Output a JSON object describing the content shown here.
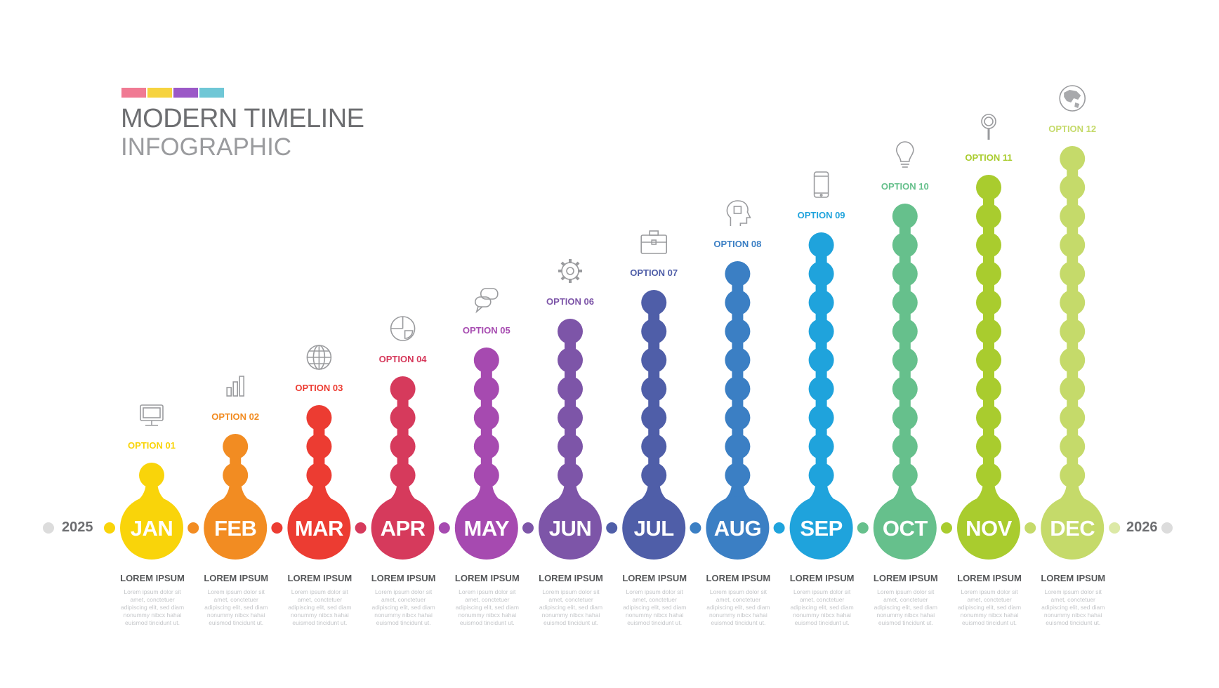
{
  "header": {
    "title_line1": "MODERN TIMELINE",
    "title_line2": "INFOGRAPHIC",
    "swatches": [
      "#f07a93",
      "#f6d33f",
      "#9b59c7",
      "#6fc7d6"
    ]
  },
  "years": {
    "start": "2025",
    "end": "2026"
  },
  "months": [
    {
      "label": "JAN",
      "option": "OPTION 01",
      "icon": "computer-icon",
      "color": "#f9d40a",
      "head": "LOREM IPSUM",
      "body": "Lorem ipsum dolor sit amet, conctetuer adipiscing elit, sed diam nonummy nibcx hahai euismod tincidunt ut."
    },
    {
      "label": "FEB",
      "option": "OPTION 02",
      "icon": "bar-chart-icon",
      "color": "#f28c22",
      "head": "LOREM IPSUM",
      "body": "Lorem ipsum dolor sit amet, conctetuer adipiscing elit, sed diam nonummy nibcx hahai euismod tincidunt ut."
    },
    {
      "label": "MAR",
      "option": "OPTION 03",
      "icon": "globe-icon",
      "color": "#ec3c32",
      "head": "LOREM IPSUM",
      "body": "Lorem ipsum dolor sit amet, conctetuer adipiscing elit, sed diam nonummy nibcx hahai euismod tincidunt ut."
    },
    {
      "label": "APR",
      "option": "OPTION 04",
      "icon": "pie-chart-icon",
      "color": "#d63a5c",
      "head": "LOREM IPSUM",
      "body": "Lorem ipsum dolor sit amet, conctetuer adipiscing elit, sed diam nonummy nibcx hahai euismod tincidunt ut."
    },
    {
      "label": "MAY",
      "option": "OPTION 05",
      "icon": "chat-bubbles-icon",
      "color": "#a64ab0",
      "head": "LOREM IPSUM",
      "body": "Lorem ipsum dolor sit amet, conctetuer adipiscing elit, sed diam nonummy nibcx hahai euismod tincidunt ut."
    },
    {
      "label": "JUN",
      "option": "OPTION 06",
      "icon": "gear-icon",
      "color": "#7d55a8",
      "head": "LOREM IPSUM",
      "body": "Lorem ipsum dolor sit amet, conctetuer adipiscing elit, sed diam nonummy nibcx hahai euismod tincidunt ut."
    },
    {
      "label": "JUL",
      "option": "OPTION 07",
      "icon": "briefcase-icon",
      "color": "#4f5ea8",
      "head": "LOREM IPSUM",
      "body": "Lorem ipsum dolor sit amet, conctetuer adipiscing elit, sed diam nonummy nibcx hahai euismod tincidunt ut."
    },
    {
      "label": "AUG",
      "option": "OPTION 08",
      "icon": "head-icon",
      "color": "#3b7fc4",
      "head": "LOREM IPSUM",
      "body": "Lorem ipsum dolor sit amet, conctetuer adipiscing elit, sed diam nonummy nibcx hahai euismod tincidunt ut."
    },
    {
      "label": "SEP",
      "option": "OPTION 09",
      "icon": "smartphone-icon",
      "color": "#1fa3dc",
      "head": "LOREM IPSUM",
      "body": "Lorem ipsum dolor sit amet, conctetuer adipiscing elit, sed diam nonummy nibcx hahai euismod tincidunt ut."
    },
    {
      "label": "OCT",
      "option": "OPTION 10",
      "icon": "lightbulb-icon",
      "color": "#66c08c",
      "head": "LOREM IPSUM",
      "body": "Lorem ipsum dolor sit amet, conctetuer adipiscing elit, sed diam nonummy nibcx hahai euismod tincidunt ut."
    },
    {
      "label": "NOV",
      "option": "OPTION 11",
      "icon": "magnifier-icon",
      "color": "#a9cc2e",
      "head": "LOREM IPSUM",
      "body": "Lorem ipsum dolor sit amet, conctetuer adipiscing elit, sed diam nonummy nibcx hahai euismod tincidunt ut."
    },
    {
      "label": "DEC",
      "option": "OPTION 12",
      "icon": "world-map-icon",
      "color": "#c5da6a",
      "head": "LOREM IPSUM",
      "body": "Lorem ipsum dolor sit amet, conctetuer adipiscing elit, sed diam nonummy nibcx hahai euismod tincidunt ut."
    }
  ]
}
